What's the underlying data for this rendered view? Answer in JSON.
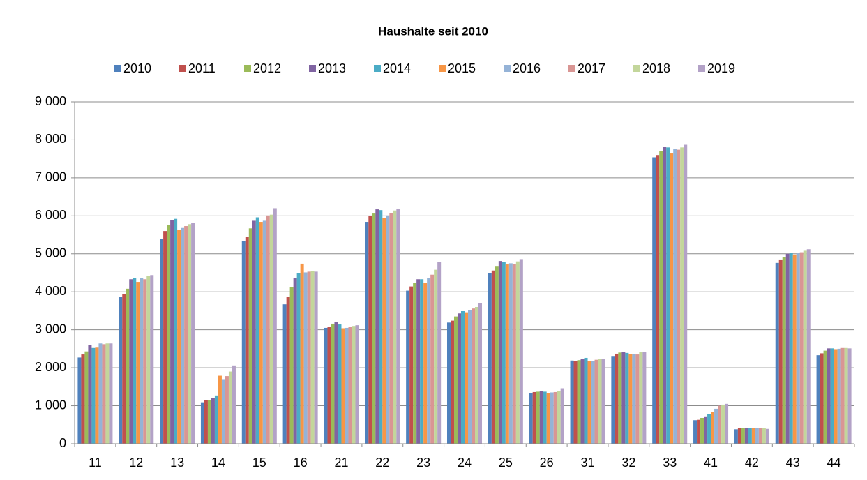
{
  "chart_data": {
    "type": "bar",
    "title": "Haushalte seit 2010",
    "categories": [
      "11",
      "12",
      "13",
      "14",
      "15",
      "16",
      "21",
      "22",
      "23",
      "24",
      "25",
      "26",
      "31",
      "32",
      "33",
      "41",
      "42",
      "43",
      "44"
    ],
    "series": [
      {
        "name": "2010",
        "color": "#4f81bd",
        "values": [
          2270,
          3860,
          5390,
          1090,
          5340,
          3670,
          3050,
          5840,
          4030,
          3190,
          4490,
          1330,
          2190,
          2310,
          7540,
          620,
          380,
          4760,
          2330
        ]
      },
      {
        "name": "2011",
        "color": "#c0504d",
        "values": [
          2350,
          3940,
          5600,
          1140,
          5450,
          3870,
          3080,
          6000,
          4140,
          3240,
          4560,
          1360,
          2170,
          2370,
          7600,
          630,
          410,
          4850,
          2380
        ]
      },
      {
        "name": "2012",
        "color": "#9bbb59",
        "values": [
          2430,
          4080,
          5750,
          1140,
          5670,
          4130,
          3160,
          6060,
          4240,
          3350,
          4680,
          1370,
          2200,
          2400,
          7700,
          680,
          420,
          4920,
          2450
        ]
      },
      {
        "name": "2013",
        "color": "#8064a2",
        "values": [
          2600,
          4330,
          5880,
          1200,
          5870,
          4360,
          3210,
          6170,
          4330,
          3430,
          4810,
          1380,
          2240,
          2420,
          7820,
          720,
          420,
          5000,
          2510
        ]
      },
      {
        "name": "2014",
        "color": "#4bacc6",
        "values": [
          2520,
          4360,
          5920,
          1270,
          5960,
          4500,
          3140,
          6150,
          4330,
          3490,
          4790,
          1370,
          2260,
          2390,
          7800,
          780,
          420,
          5020,
          2510
        ]
      },
      {
        "name": "2015",
        "color": "#f79646",
        "values": [
          2530,
          4260,
          5630,
          1790,
          5840,
          4740,
          3040,
          5950,
          4240,
          3460,
          4720,
          1340,
          2170,
          2360,
          7640,
          840,
          410,
          4980,
          2490
        ]
      },
      {
        "name": "2016",
        "color": "#95b3d7",
        "values": [
          2640,
          4360,
          5680,
          1700,
          5870,
          4510,
          3050,
          6010,
          4360,
          3520,
          4750,
          1350,
          2180,
          2360,
          7760,
          920,
          420,
          5030,
          2500
        ]
      },
      {
        "name": "2017",
        "color": "#d99694",
        "values": [
          2620,
          4330,
          5730,
          1780,
          6010,
          4530,
          3080,
          6070,
          4450,
          3560,
          4730,
          1360,
          2210,
          2350,
          7740,
          1000,
          420,
          5040,
          2520
        ]
      },
      {
        "name": "2018",
        "color": "#c3d69b",
        "values": [
          2640,
          4420,
          5780,
          1900,
          6030,
          4550,
          3100,
          6140,
          4580,
          3600,
          4800,
          1390,
          2230,
          2410,
          7800,
          1030,
          410,
          5080,
          2520
        ]
      },
      {
        "name": "2019",
        "color": "#b3a2c7",
        "values": [
          2640,
          4440,
          5820,
          2060,
          6200,
          4530,
          3120,
          6190,
          4780,
          3700,
          4860,
          1460,
          2240,
          2410,
          7870,
          1050,
          390,
          5120,
          2510
        ]
      }
    ],
    "ylim": [
      0,
      9000
    ],
    "yticks": [
      0,
      {
        "value": 1000,
        "label": "1 000"
      },
      {
        "value": 2000,
        "label": "2 000"
      },
      {
        "value": 3000,
        "label": "3 000"
      },
      {
        "value": 4000,
        "label": "4 000"
      },
      {
        "value": 5000,
        "label": "5 000"
      },
      {
        "value": 6000,
        "label": "6 000"
      },
      {
        "value": 7000,
        "label": "7 000"
      },
      {
        "value": 8000,
        "label": "8 000"
      },
      {
        "value": 9000,
        "label": "9 000"
      }
    ],
    "grid": true,
    "legend": "top"
  }
}
